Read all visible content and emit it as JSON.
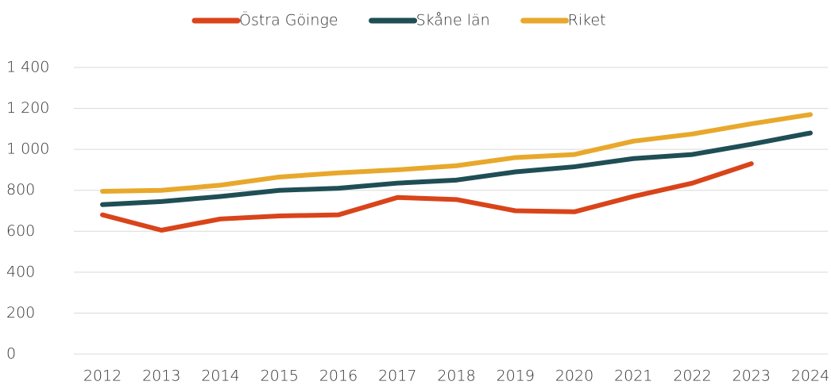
{
  "chart_data": {
    "type": "line",
    "categories": [
      "2012",
      "2013",
      "2014",
      "2015",
      "2016",
      "2017",
      "2018",
      "2019",
      "2020",
      "2021",
      "2022",
      "2023",
      "2024"
    ],
    "series": [
      {
        "name": "Östra Göinge",
        "color": "#d9441a",
        "values": [
          680,
          605,
          660,
          675,
          680,
          765,
          755,
          700,
          695,
          770,
          835,
          930,
          null
        ]
      },
      {
        "name": "Skåne län",
        "color": "#1f4e55",
        "values": [
          730,
          745,
          770,
          800,
          810,
          835,
          850,
          890,
          915,
          955,
          975,
          1025,
          1080
        ]
      },
      {
        "name": "Riket",
        "color": "#e8a82c",
        "values": [
          795,
          800,
          825,
          865,
          885,
          900,
          920,
          960,
          975,
          1040,
          1075,
          1125,
          1170
        ]
      }
    ],
    "ylim": [
      0,
      1400
    ],
    "yticks": [
      0,
      200,
      400,
      600,
      800,
      {
        "value": 1000,
        "label": "1 000"
      },
      {
        "value": 1200,
        "label": "1 200"
      },
      {
        "value": 1400,
        "label": "1 400"
      }
    ],
    "grid": true,
    "legend": "top"
  }
}
